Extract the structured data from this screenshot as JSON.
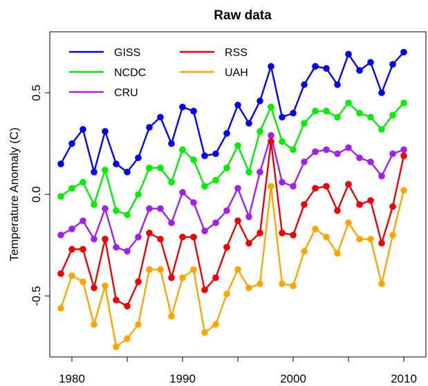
{
  "chart_data": {
    "type": "line",
    "title": "Raw data",
    "xlabel": "",
    "ylabel": "Temperature Anomaly (C)",
    "xlim": [
      1978,
      2012
    ],
    "ylim": [
      -0.8,
      0.8
    ],
    "xticks": [
      1980,
      1985,
      1990,
      1995,
      2000,
      2005,
      2010
    ],
    "xtick_labels": [
      "1980",
      "",
      "1990",
      "",
      "2000",
      "",
      "2010"
    ],
    "yticks": [
      -0.5,
      0.0,
      0.5
    ],
    "ytick_labels": [
      "-0.5",
      "0.0",
      "0.5"
    ],
    "grid": false,
    "legend_position": "top-left",
    "x": [
      1979,
      1980,
      1981,
      1982,
      1983,
      1984,
      1985,
      1986,
      1987,
      1988,
      1989,
      1990,
      1991,
      1992,
      1993,
      1994,
      1995,
      1996,
      1997,
      1998,
      1999,
      2000,
      2001,
      2002,
      2003,
      2004,
      2005,
      2006,
      2007,
      2008,
      2009,
      2010
    ],
    "series": [
      {
        "name": "GISS",
        "color": "#0000ee",
        "values": [
          0.15,
          0.25,
          0.32,
          0.11,
          0.31,
          0.15,
          0.11,
          0.18,
          0.33,
          0.38,
          0.25,
          0.43,
          0.41,
          0.19,
          0.2,
          0.3,
          0.44,
          0.35,
          0.46,
          0.63,
          0.38,
          0.4,
          0.54,
          0.63,
          0.62,
          0.54,
          0.69,
          0.61,
          0.65,
          0.5,
          0.64,
          0.7
        ]
      },
      {
        "name": "NCDC",
        "color": "#00ee00",
        "values": [
          -0.01,
          0.03,
          0.06,
          -0.05,
          0.12,
          -0.08,
          -0.1,
          0.0,
          0.13,
          0.13,
          0.06,
          0.22,
          0.17,
          0.04,
          0.07,
          0.13,
          0.24,
          0.11,
          0.31,
          0.43,
          0.26,
          0.22,
          0.35,
          0.41,
          0.41,
          0.38,
          0.45,
          0.4,
          0.38,
          0.32,
          0.39,
          0.45
        ]
      },
      {
        "name": "CRU",
        "color": "#a020f0",
        "values": [
          -0.2,
          -0.17,
          -0.13,
          -0.22,
          -0.07,
          -0.26,
          -0.28,
          -0.21,
          -0.07,
          -0.07,
          -0.14,
          0.01,
          -0.04,
          -0.18,
          -0.14,
          -0.08,
          0.03,
          -0.11,
          0.11,
          0.29,
          0.06,
          0.04,
          0.16,
          0.21,
          0.22,
          0.2,
          0.23,
          0.18,
          0.16,
          0.09,
          0.2,
          0.22
        ]
      },
      {
        "name": "RSS",
        "color": "#ee0000",
        "values": [
          -0.39,
          -0.27,
          -0.27,
          -0.46,
          -0.22,
          -0.52,
          -0.55,
          -0.43,
          -0.19,
          -0.22,
          -0.41,
          -0.21,
          -0.21,
          -0.47,
          -0.41,
          -0.26,
          -0.13,
          -0.24,
          -0.19,
          0.26,
          -0.19,
          -0.2,
          -0.05,
          0.03,
          0.04,
          -0.08,
          0.05,
          -0.05,
          -0.03,
          -0.24,
          -0.06,
          0.19
        ]
      },
      {
        "name": "UAH",
        "color": "#ffa500",
        "values": [
          -0.56,
          -0.4,
          -0.43,
          -0.64,
          -0.45,
          -0.75,
          -0.71,
          -0.64,
          -0.37,
          -0.37,
          -0.6,
          -0.41,
          -0.37,
          -0.68,
          -0.64,
          -0.49,
          -0.37,
          -0.46,
          -0.44,
          0.04,
          -0.44,
          -0.45,
          -0.28,
          -0.17,
          -0.21,
          -0.29,
          -0.14,
          -0.22,
          -0.22,
          -0.44,
          -0.2,
          0.02
        ]
      }
    ]
  }
}
